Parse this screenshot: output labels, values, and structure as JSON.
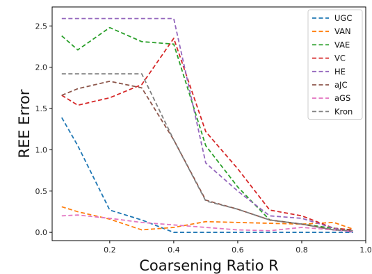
{
  "chart_data": {
    "type": "line",
    "title": "",
    "xlabel": "Coarsening Ratio R",
    "ylabel": "REE Error",
    "xlim": [
      0.02,
      1.0
    ],
    "ylim": [
      -0.1,
      2.73
    ],
    "xticks": [
      0.2,
      0.4,
      0.6,
      0.8,
      1.0
    ],
    "xtick_labels": [
      "0.2",
      "0.4",
      "0.6",
      "0.8",
      "1.0"
    ],
    "yticks": [
      0.0,
      0.5,
      1.0,
      1.5,
      2.0,
      2.5
    ],
    "ytick_labels": [
      "0.0",
      "0.5",
      "1.0",
      "1.5",
      "2.0",
      "2.5"
    ],
    "grid": false,
    "legend_position": "top-right",
    "line_style": "dashed",
    "series": [
      {
        "name": "UGC",
        "color": "#1f77b4",
        "x": [
          0.05,
          0.1,
          0.2,
          0.3,
          0.4,
          0.5,
          0.6,
          0.7,
          0.8,
          0.9,
          0.96
        ],
        "y": [
          1.39,
          1.05,
          0.27,
          0.15,
          0.0,
          0.0,
          0.0,
          0.0,
          0.0,
          0.0,
          0.0
        ]
      },
      {
        "name": "VAN",
        "color": "#ff7f0e",
        "x": [
          0.05,
          0.1,
          0.2,
          0.3,
          0.4,
          0.5,
          0.6,
          0.7,
          0.8,
          0.9,
          0.96
        ],
        "y": [
          0.31,
          0.25,
          0.16,
          0.03,
          0.06,
          0.13,
          0.12,
          0.11,
          0.1,
          0.12,
          0.04
        ]
      },
      {
        "name": "VAE",
        "color": "#2ca02c",
        "x": [
          0.05,
          0.1,
          0.2,
          0.3,
          0.4,
          0.5,
          0.6,
          0.7,
          0.8,
          0.9,
          0.96
        ],
        "y": [
          2.38,
          2.21,
          2.48,
          2.31,
          2.28,
          1.05,
          0.55,
          0.15,
          0.1,
          0.05,
          0.03
        ]
      },
      {
        "name": "VC",
        "color": "#d62728",
        "x": [
          0.05,
          0.1,
          0.2,
          0.3,
          0.4,
          0.5,
          0.6,
          0.7,
          0.8,
          0.9,
          0.96
        ],
        "y": [
          1.66,
          1.54,
          1.63,
          1.79,
          2.35,
          1.22,
          0.77,
          0.27,
          0.2,
          0.05,
          0.03
        ]
      },
      {
        "name": "HE",
        "color": "#9467bd",
        "x": [
          0.05,
          0.1,
          0.2,
          0.3,
          0.4,
          0.5,
          0.6,
          0.7,
          0.8,
          0.9,
          0.96
        ],
        "y": [
          2.59,
          2.59,
          2.59,
          2.59,
          2.59,
          0.84,
          0.5,
          0.2,
          0.17,
          0.05,
          0.0
        ]
      },
      {
        "name": "aJC",
        "color": "#8c564b",
        "x": [
          0.05,
          0.1,
          0.2,
          0.3,
          0.4,
          0.5,
          0.6,
          0.7,
          0.8,
          0.9,
          0.96
        ],
        "y": [
          1.66,
          1.74,
          1.83,
          1.75,
          1.12,
          0.39,
          0.28,
          0.15,
          0.1,
          0.03,
          0.02
        ]
      },
      {
        "name": "aGS",
        "color": "#e377c2",
        "x": [
          0.05,
          0.1,
          0.2,
          0.3,
          0.4,
          0.5,
          0.6,
          0.7,
          0.8,
          0.9,
          0.96
        ],
        "y": [
          0.2,
          0.21,
          0.17,
          0.12,
          0.09,
          0.06,
          0.03,
          0.02,
          0.06,
          0.03,
          0.01
        ]
      },
      {
        "name": "Kron",
        "color": "#7f7f7f",
        "x": [
          0.05,
          0.1,
          0.2,
          0.3,
          0.4,
          0.5,
          0.6,
          0.7,
          0.8,
          0.9,
          0.96
        ],
        "y": [
          1.92,
          1.92,
          1.92,
          1.92,
          1.12,
          0.38,
          0.28,
          0.15,
          0.1,
          0.03,
          0.02
        ]
      }
    ]
  }
}
